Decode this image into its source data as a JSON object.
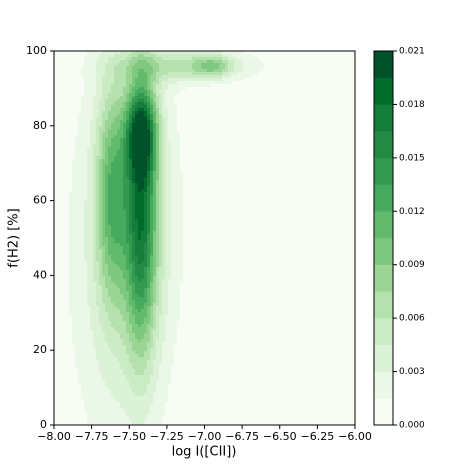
{
  "chart_data": {
    "type": "contourf",
    "xlabel": "log I([CII])",
    "ylabel": "f(H2) [%]",
    "xlim": [
      -8.0,
      -6.0
    ],
    "xticks": [
      {
        "value": -8.0,
        "label": "−8.00"
      },
      {
        "value": -7.75,
        "label": "−7.75"
      },
      {
        "value": -7.5,
        "label": "−7.50"
      },
      {
        "value": -7.25,
        "label": "−7.25"
      },
      {
        "value": -7.0,
        "label": "−7.00"
      },
      {
        "value": -6.75,
        "label": "−6.75"
      },
      {
        "value": -6.5,
        "label": "−6.50"
      },
      {
        "value": -6.25,
        "label": "−6.25"
      },
      {
        "value": -6.0,
        "label": "−6.00"
      }
    ],
    "ylim": [
      0,
      100
    ],
    "yticks": [
      0,
      20,
      40,
      60,
      80,
      100
    ],
    "levels": [
      0,
      0.0015,
      0.003,
      0.0045,
      0.006,
      0.0075,
      0.009,
      0.0105,
      0.012,
      0.0135,
      0.015,
      0.0165,
      0.018,
      0.0195,
      0.021
    ],
    "colors": [
      "#f7fcf5",
      "#ebf7e7",
      "#dcf2d7",
      "#cbebc5",
      "#b4e1ad",
      "#9bd595",
      "#7fc87f",
      "#62bb6d",
      "#46ab5e",
      "#339a50",
      "#228a44",
      "#137d39",
      "#006c2c",
      "#00522a"
    ],
    "colorbar": {
      "lim": [
        0,
        0.021
      ],
      "ticks": [
        {
          "value": 0,
          "label": "0.000"
        },
        {
          "value": 0.003,
          "label": "0.003"
        },
        {
          "value": 0.006,
          "label": "0.006"
        },
        {
          "value": 0.009,
          "label": "0.009"
        },
        {
          "value": 0.012,
          "label": "0.012"
        },
        {
          "value": 0.015,
          "label": "0.015"
        },
        {
          "value": 0.018,
          "label": "0.018"
        },
        {
          "value": 0.021,
          "label": "0.021"
        }
      ]
    }
  }
}
